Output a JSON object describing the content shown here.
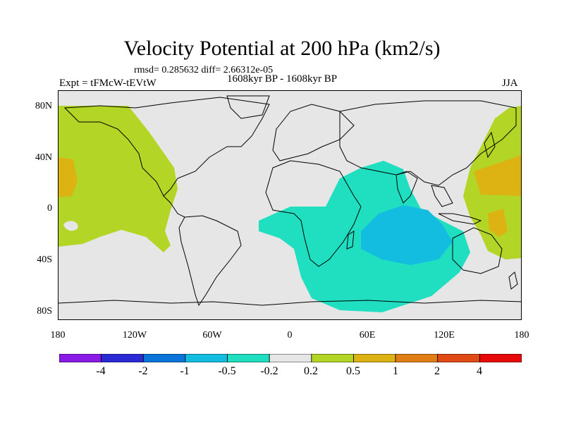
{
  "title": "Velocity Potential at 200 hPa (km2/s)",
  "stats": "rmsd= 0.285632 diff= 2.66312e-05",
  "experiment": "Expt = tFMcW-tEVtW",
  "period": "1608kyr BP - 1608kyr BP",
  "season": "JJA",
  "y_axis_labels": [
    "80N",
    "40N",
    "0",
    "40S",
    "80S"
  ],
  "x_axis_labels": [
    "180",
    "120W",
    "60W",
    "0",
    "60E",
    "120E",
    "180"
  ],
  "colorbar": {
    "labels": [
      "-4",
      "-2",
      "-1",
      "-0.5",
      "-0.2",
      "0.2",
      "0.5",
      "1",
      "2",
      "4"
    ],
    "colors": [
      "#8a1ae6",
      "#2b2bd6",
      "#0a74d9",
      "#12bde0",
      "#1fdfc0",
      "#e6e6e6",
      "#b3d626",
      "#dcb312",
      "#e07e14",
      "#e04a14",
      "#e60a0a"
    ]
  },
  "colors": {
    "ocean_background": "#e6e6e6",
    "coastline": "#000000",
    "positive_weak": "#b3d626",
    "positive_mid": "#dcb312",
    "positive_strong": "#e07e14",
    "negative_weak": "#1fdfc0",
    "negative_mid": "#12bde0"
  }
}
